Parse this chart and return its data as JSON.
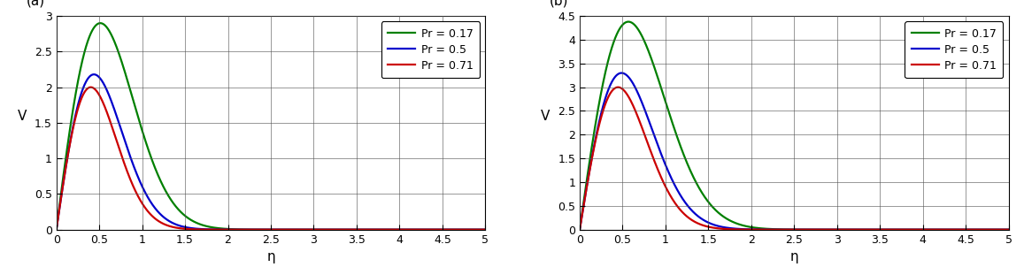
{
  "panel_a": {
    "label": "(a)",
    "curves": [
      {
        "Pr": 0.17,
        "color": "#008000",
        "B": 1.9,
        "peak_y": 2.9
      },
      {
        "Pr": 0.5,
        "color": "#0000cc",
        "B": 2.6,
        "peak_y": 2.18
      },
      {
        "Pr": 0.71,
        "color": "#cc0000",
        "B": 3.1,
        "peak_y": 2.0
      }
    ],
    "xlim": [
      0,
      5
    ],
    "ylim": [
      0,
      3
    ],
    "yticks": [
      0,
      0.5,
      1.0,
      1.5,
      2.0,
      2.5,
      3.0
    ],
    "xticks": [
      0,
      0.5,
      1.0,
      1.5,
      2.0,
      2.5,
      3.0,
      3.5,
      4.0,
      4.5,
      5.0
    ],
    "xlabel": "η",
    "ylabel": "V"
  },
  "panel_b": {
    "label": "(b)",
    "curves": [
      {
        "Pr": 0.17,
        "color": "#008000",
        "B": 1.55,
        "peak_y": 4.38
      },
      {
        "Pr": 0.5,
        "color": "#0000cc",
        "B": 2.1,
        "peak_y": 3.3
      },
      {
        "Pr": 0.71,
        "color": "#cc0000",
        "B": 2.5,
        "peak_y": 3.0
      }
    ],
    "xlim": [
      0,
      5
    ],
    "ylim": [
      0,
      4.5
    ],
    "yticks": [
      0,
      0.5,
      1.0,
      1.5,
      2.0,
      2.5,
      3.0,
      3.5,
      4.0,
      4.5
    ],
    "xticks": [
      0,
      0.5,
      1.0,
      1.5,
      2.0,
      2.5,
      3.0,
      3.5,
      4.0,
      4.5,
      5.0
    ],
    "xlabel": "η",
    "ylabel": "V"
  },
  "legend_labels": [
    "Pr = 0.17",
    "Pr = 0.5",
    "Pr = 0.71"
  ],
  "background_color": "#ffffff",
  "grid_color": "#555555",
  "linewidth": 1.6,
  "tick_fontsize": 9,
  "label_fontsize": 11
}
